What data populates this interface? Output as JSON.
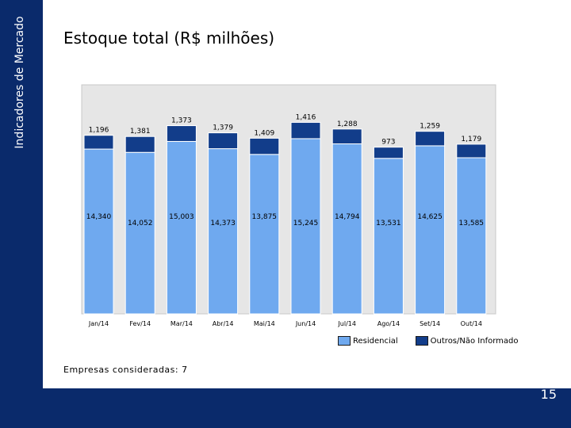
{
  "sidebar": {
    "label": "Indicadores de Mercado"
  },
  "page": {
    "title": "Estoque total (R$ milhões)",
    "footnote": "Empresas consideradas: 7",
    "number": "15"
  },
  "colors": {
    "band": "#0a2a6b",
    "residencial": "#6fa9ef",
    "outros": "#123d8a",
    "plot_bg": "#e6e6e6"
  },
  "chart_data": {
    "type": "bar",
    "stacked": true,
    "title": "Estoque total (R$ milhões)",
    "categories": [
      "Jan/14",
      "Fev/14",
      "Mar/14",
      "Abr/14",
      "Mai/14",
      "Jun/14",
      "Jul/14",
      "Ago/14",
      "Set/14",
      "Out/14"
    ],
    "series": [
      {
        "name": "Residencial",
        "values": [
          14340,
          14052,
          15003,
          14373,
          13875,
          15245,
          14794,
          13531,
          14625,
          13585
        ],
        "labels": [
          "14,340",
          "14,052",
          "15,003",
          "14,373",
          "13,875",
          "15,245",
          "14,794",
          "13,531",
          "14,625",
          "13,585"
        ]
      },
      {
        "name": "Outros/Não Informado",
        "values": [
          1196,
          1381,
          1373,
          1379,
          1409,
          1416,
          1288,
          973,
          1259,
          1179
        ],
        "labels": [
          "1,196",
          "1,381",
          "1,373",
          "1,379",
          "1,409",
          "1,416",
          "1,288",
          "973",
          "1,259",
          "1,179"
        ]
      }
    ],
    "legend_position": "bottom-right"
  }
}
